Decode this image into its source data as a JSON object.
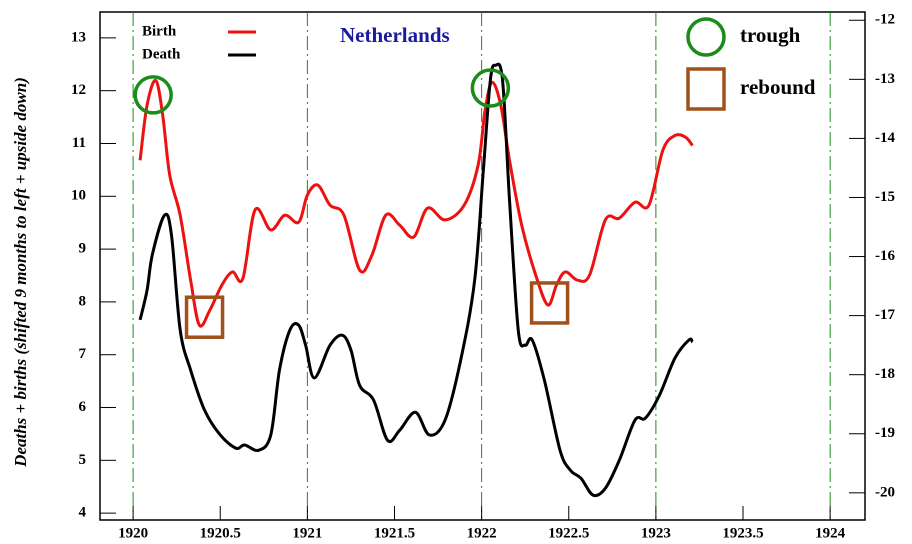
{
  "chart_data": {
    "type": "line",
    "title": "Netherlands",
    "y_label": "Deaths + births (shifted 9 months to left + upside down)",
    "xlim": [
      1919.81,
      1924.2
    ],
    "xticks": [
      1920,
      1920.5,
      1921,
      1921.5,
      1922,
      1922.5,
      1923,
      1923.5,
      1924
    ],
    "ylim": [
      3.87,
      13.49
    ],
    "yticks": [
      4,
      5,
      6,
      7,
      8,
      9,
      10,
      11,
      12,
      13
    ],
    "y2lim": [
      -20.46,
      -11.86
    ],
    "y2_inverted": true,
    "y2ticks": [
      -12,
      -13,
      -14,
      -15,
      -16,
      -17,
      -18,
      -19,
      -20
    ],
    "reference_lines": {
      "color": "#1a8c1a",
      "x": [
        1920,
        1921,
        1922,
        1923,
        1924
      ]
    },
    "legend": "top-left",
    "series": [
      {
        "name": "Birth",
        "color": "#ee1111",
        "axis": "y2",
        "x": [
          1920.04,
          1920.08,
          1920.13,
          1920.17,
          1920.21,
          1920.27,
          1920.33,
          1920.38,
          1920.44,
          1920.51,
          1920.57,
          1920.63,
          1920.7,
          1920.79,
          1920.87,
          1920.95,
          1921.0,
          1921.06,
          1921.13,
          1921.21,
          1921.3,
          1921.37,
          1921.45,
          1921.53,
          1921.61,
          1921.69,
          1921.79,
          1921.9,
          1921.98,
          1922.02,
          1922.06,
          1922.11,
          1922.16,
          1922.23,
          1922.31,
          1922.38,
          1922.43,
          1922.48,
          1922.55,
          1922.62,
          1922.71,
          1922.79,
          1922.88,
          1922.96,
          1923.04,
          1923.11,
          1923.17,
          1923.21
        ],
        "values": [
          -14.37,
          -13.44,
          -13.02,
          -13.61,
          -14.62,
          -15.3,
          -16.4,
          -17.16,
          -16.91,
          -16.48,
          -16.26,
          -16.37,
          -15.21,
          -15.55,
          -15.3,
          -15.42,
          -14.96,
          -14.79,
          -15.13,
          -15.3,
          -16.23,
          -15.98,
          -15.3,
          -15.47,
          -15.67,
          -15.18,
          -15.38,
          -15.13,
          -14.45,
          -13.52,
          -13.05,
          -13.44,
          -14.37,
          -15.47,
          -16.31,
          -16.82,
          -16.48,
          -16.26,
          -16.4,
          -16.31,
          -15.38,
          -15.35,
          -15.08,
          -15.13,
          -14.2,
          -13.95,
          -13.98,
          -14.12
        ]
      },
      {
        "name": "Death",
        "color": "#000000",
        "x": [
          1920.04,
          1920.08,
          1920.11,
          1920.18,
          1920.22,
          1920.27,
          1920.33,
          1920.41,
          1920.5,
          1920.59,
          1920.64,
          1920.72,
          1920.79,
          1920.84,
          1920.9,
          1920.95,
          1920.99,
          1921.04,
          1921.13,
          1921.2,
          1921.25,
          1921.3,
          1921.38,
          1921.46,
          1921.53,
          1921.62,
          1921.7,
          1921.79,
          1921.88,
          1921.96,
          1922.01,
          1922.05,
          1922.08,
          1922.12,
          1922.16,
          1922.21,
          1922.25,
          1922.29,
          1922.36,
          1922.45,
          1922.51,
          1922.57,
          1922.64,
          1922.71,
          1922.79,
          1922.88,
          1922.94,
          1923.02,
          1923.11,
          1923.19,
          1923.21
        ],
        "values": [
          7.66,
          8.22,
          8.89,
          9.64,
          9.27,
          7.47,
          6.71,
          5.95,
          5.48,
          5.23,
          5.29,
          5.19,
          5.48,
          6.71,
          7.47,
          7.56,
          7.18,
          6.56,
          7.18,
          7.37,
          7.09,
          6.42,
          6.14,
          5.38,
          5.57,
          5.91,
          5.48,
          5.76,
          6.9,
          8.41,
          10.5,
          12.2,
          12.48,
          12.2,
          9.93,
          7.47,
          7.18,
          7.28,
          6.52,
          5.19,
          4.81,
          4.66,
          4.34,
          4.47,
          5.0,
          5.76,
          5.8,
          6.23,
          6.94,
          7.28,
          7.24
        ]
      }
    ],
    "annotations": [
      {
        "label": "trough",
        "shape": "circle",
        "color": "#1a8c1a",
        "points": [
          {
            "x": 1920.115,
            "y": 11.92
          },
          {
            "x": 1922.05,
            "y": 12.05
          }
        ]
      },
      {
        "label": "rebound",
        "shape": "square",
        "color": "#a0501a",
        "points": [
          {
            "x": 1920.41,
            "y": 7.71
          },
          {
            "x": 1922.39,
            "y": 7.98
          }
        ]
      }
    ]
  }
}
